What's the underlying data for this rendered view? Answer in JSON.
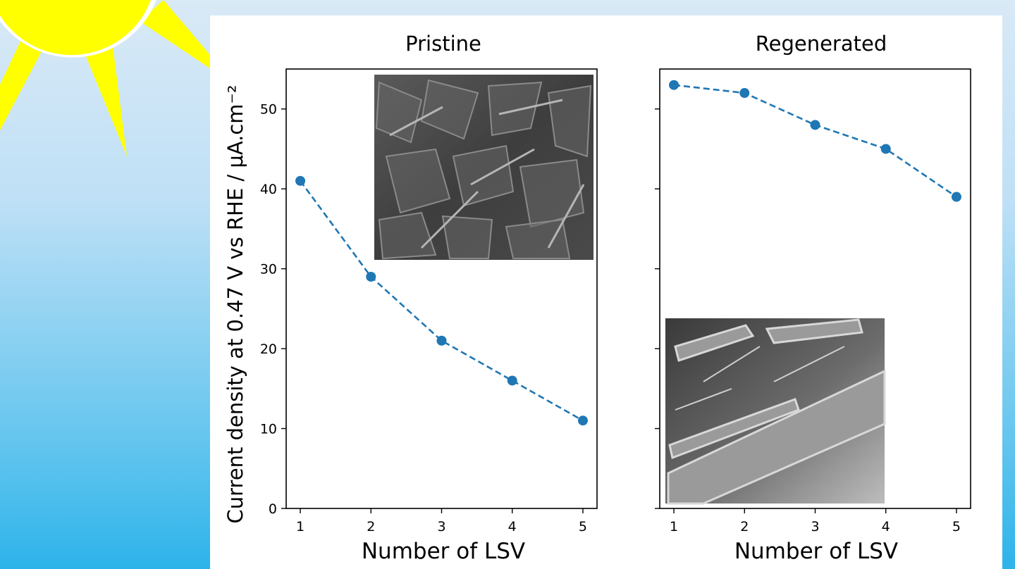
{
  "colors": {
    "series": "#1f77b4",
    "sun": "#ffff00",
    "sky_top": "#d9e9f6",
    "sky_bottom": "#2db3ea"
  },
  "decoration": {
    "sun": "sun-icon"
  },
  "chart_data": {
    "type": "line",
    "shared_ylabel": "Current density at 0.47 V vs RHE / μA.cm⁻²",
    "ylim": [
      0,
      55
    ],
    "yticks": [
      0,
      10,
      20,
      30,
      40,
      50
    ],
    "xticks": [
      1,
      2,
      3,
      4,
      5
    ],
    "xlim": [
      0.8,
      5.2
    ],
    "line_style": "dashed",
    "marker": "circle",
    "panels": [
      {
        "title": "Pristine",
        "xlabel": "Number of LSV",
        "x": [
          1,
          2,
          3,
          4,
          5
        ],
        "y": [
          41,
          29,
          21,
          16,
          11
        ],
        "inset": "SEM micrograph (pristine)",
        "inset_placement": "top-right"
      },
      {
        "title": "Regenerated",
        "xlabel": "Number of LSV",
        "x": [
          1,
          2,
          3,
          4,
          5
        ],
        "y": [
          53,
          52,
          48,
          45,
          39
        ],
        "inset": "SEM micrograph (regenerated)",
        "inset_placement": "bottom-left"
      }
    ]
  }
}
